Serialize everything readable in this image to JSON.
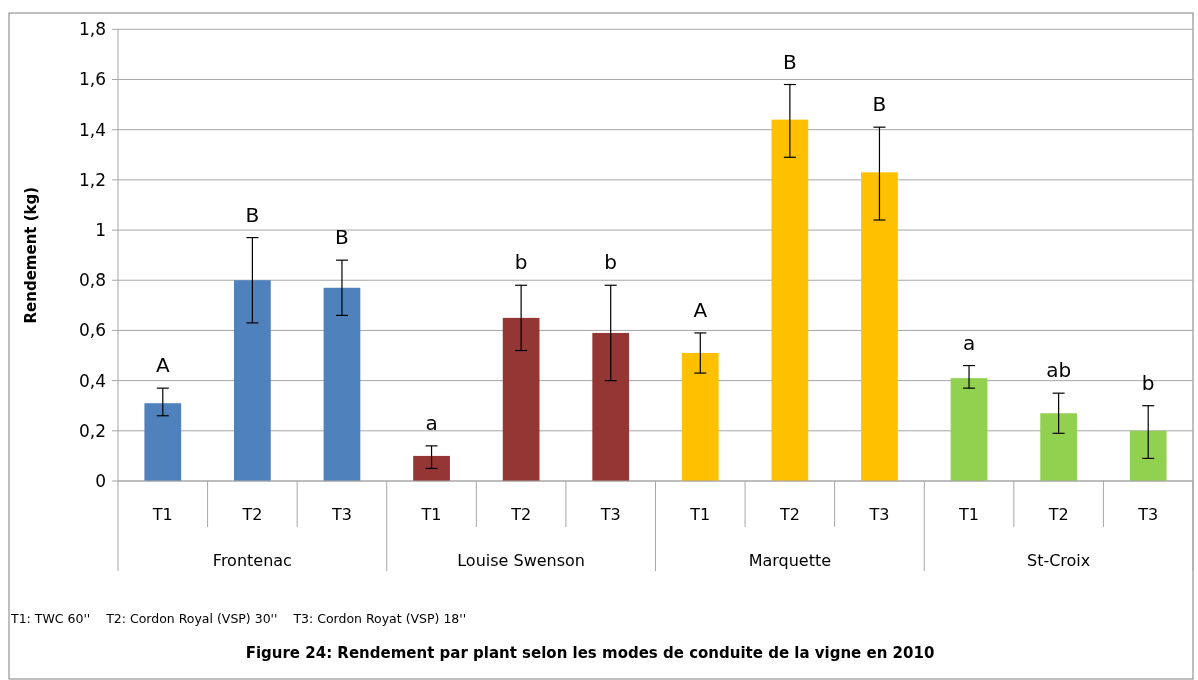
{
  "chart_data": {
    "type": "bar",
    "title": "Figure 24: Rendement par plant selon les modes de conduite de la vigne en 2010",
    "ylabel": "Rendement (kg)",
    "annotations": [
      "T1: TWC 60''    T2: Cordon Royal (VSP) 30''    T3: Cordon Royat (VSP) 18''"
    ],
    "categories": [
      "Frontenac",
      "Louise Swenson",
      "Marquette",
      "St-Croix"
    ],
    "series": [
      {
        "name": "T1",
        "colors": [
          "#4f81bd",
          "#943634",
          "#ffc000",
          "#92d050"
        ],
        "values": [
          0.31,
          0.1,
          0.51,
          0.41
        ],
        "errors": [
          [
            0.26,
            0.37
          ],
          [
            0.05,
            0.14
          ],
          [
            0.43,
            0.59
          ],
          [
            0.37,
            0.46
          ]
        ],
        "value_labels": [
          "A",
          "a",
          "A",
          "a"
        ]
      },
      {
        "name": "T2",
        "colors": [
          "#4f81bd",
          "#943634",
          "#ffc000",
          "#92d050"
        ],
        "values": [
          0.8,
          0.65,
          1.44,
          0.27
        ],
        "errors": [
          [
            0.63,
            0.97
          ],
          [
            0.52,
            0.78
          ],
          [
            1.29,
            1.58
          ],
          [
            0.19,
            0.35
          ]
        ],
        "value_labels": [
          "B",
          "b",
          "B",
          "ab"
        ]
      },
      {
        "name": "T3",
        "colors": [
          "#4f81bd",
          "#943634",
          "#ffc000",
          "#92d050"
        ],
        "values": [
          0.77,
          0.59,
          1.23,
          0.2
        ],
        "errors": [
          [
            0.66,
            0.88
          ],
          [
            0.4,
            0.78
          ],
          [
            1.04,
            1.41
          ],
          [
            0.09,
            0.3
          ]
        ],
        "value_labels": [
          "B",
          "b",
          "B",
          "b"
        ]
      }
    ],
    "ylim": [
      0,
      1.8
    ],
    "yticks": [
      0,
      {
        "value": 0.2,
        "label": "0,2"
      },
      {
        "value": 0.4,
        "label": "0,4"
      },
      {
        "value": 0.6,
        "label": "0,6"
      },
      {
        "value": 0.8,
        "label": "0,8"
      },
      1,
      {
        "value": 1.2,
        "label": "1,2"
      },
      {
        "value": 1.4,
        "label": "1,4"
      },
      {
        "value": 1.6,
        "label": "1,6"
      },
      {
        "value": 1.8,
        "label": "1,8"
      }
    ],
    "grid": "y"
  }
}
